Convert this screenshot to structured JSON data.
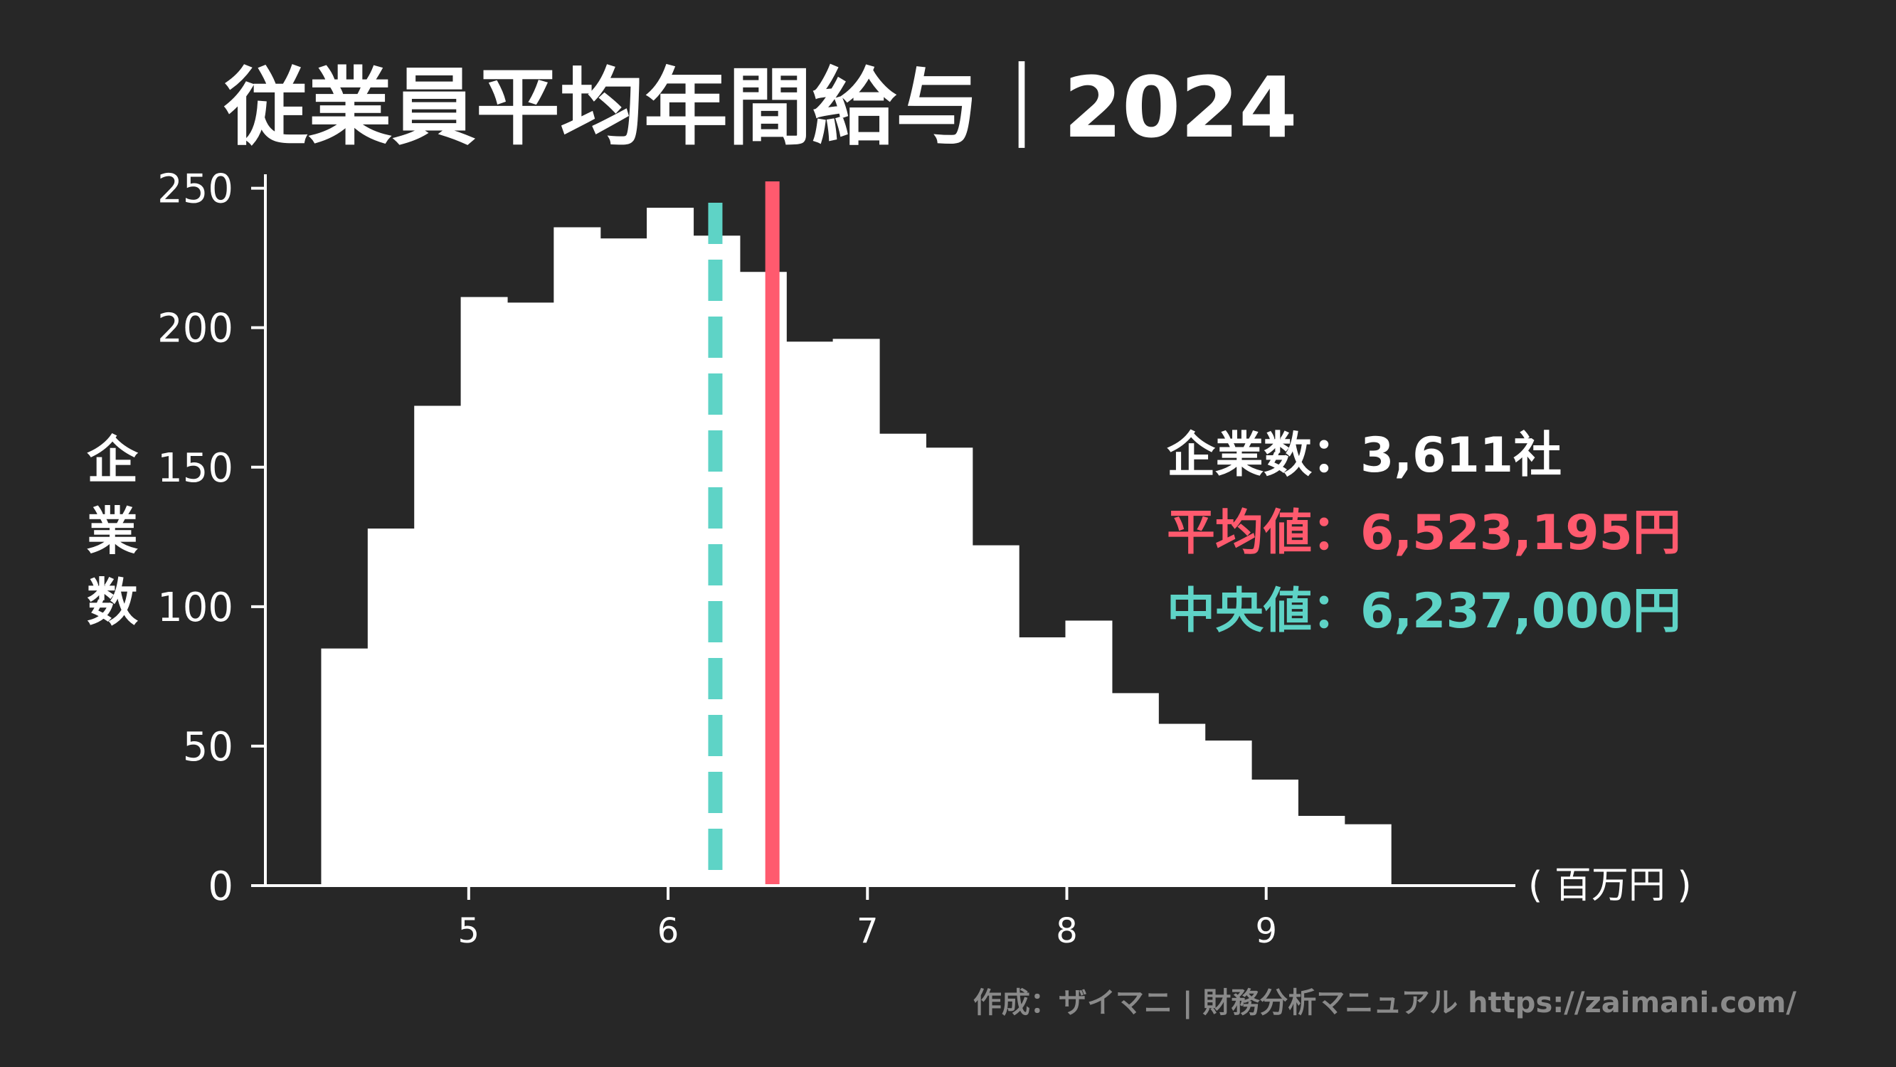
{
  "chart_data": {
    "type": "bar",
    "title": "従業員平均年間給与｜2024",
    "ylabel": "企業数",
    "xunit": "( 百万円 )",
    "x_ticks": [
      5,
      6,
      7,
      8,
      9
    ],
    "y_ticks": [
      0,
      50,
      100,
      150,
      200,
      250
    ],
    "xlim": [
      3.98,
      10.25
    ],
    "ylim": [
      0,
      255
    ],
    "bin_start": 4.26,
    "bin_width": 0.2333,
    "values": [
      85,
      128,
      172,
      211,
      209,
      236,
      232,
      243,
      233,
      220,
      195,
      196,
      162,
      157,
      122,
      89,
      95,
      69,
      58,
      52,
      38,
      25,
      22
    ],
    "mean": 6.523195,
    "median": 6.237,
    "stats": {
      "count_label": "企業数：3,611社",
      "mean_label": "平均値：6,523,195円",
      "median_label": "中央値：6,237,000円"
    },
    "grid": false,
    "colors": {
      "background": "#272727",
      "bars": "#ffffff",
      "mean": "#ff5a6e",
      "median": "#5ed3c6"
    }
  },
  "credit": "作成：ザイマニ | 財務分析マニュアル https://zaimani.com/"
}
